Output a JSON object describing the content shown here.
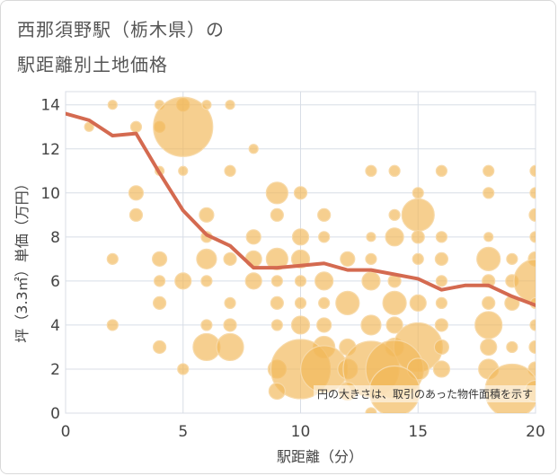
{
  "title_line1": "西那須野駅（栃木県）の",
  "title_line2": "駅距離別土地価格",
  "chart_data": {
    "type": "scatter",
    "xlabel": "駅距離（分）",
    "ylabel": "坪（3.3㎡）単価（万円）",
    "xlim": [
      0,
      20
    ],
    "ylim": [
      0,
      14.6
    ],
    "xticks": [
      0,
      5,
      10,
      15,
      20
    ],
    "yticks": [
      0,
      2,
      4,
      6,
      8,
      10,
      12,
      14
    ],
    "grid": true,
    "note": "円の大きさは、取引のあった物件面積を示す",
    "colors": {
      "bubble_fill": "#f2b85a",
      "bubble_stroke": "#f7d9a8",
      "trend_line": "#d46a50",
      "grid": "#d8dde6",
      "plot_background": "#ffffff"
    },
    "trend_line": {
      "x": [
        0,
        1,
        2,
        3,
        4,
        5,
        6,
        7,
        8,
        9,
        10,
        11,
        12,
        13,
        14,
        15,
        16,
        17,
        18,
        19,
        20
      ],
      "y": [
        13.6,
        13.3,
        12.6,
        12.7,
        10.9,
        9.2,
        8.1,
        7.6,
        6.6,
        6.6,
        6.7,
        6.8,
        6.5,
        6.5,
        6.3,
        6.1,
        5.6,
        5.8,
        5.8,
        5.3,
        4.9
      ]
    },
    "points": [
      {
        "x": 1,
        "y": 13,
        "s": 5
      },
      {
        "x": 2,
        "y": 14,
        "s": 5
      },
      {
        "x": 3,
        "y": 13,
        "s": 6
      },
      {
        "x": 4,
        "y": 13,
        "s": 6
      },
      {
        "x": 4,
        "y": 14,
        "s": 5
      },
      {
        "x": 5,
        "y": 14,
        "s": 7
      },
      {
        "x": 5,
        "y": 13,
        "s": 33
      },
      {
        "x": 6,
        "y": 14,
        "s": 5
      },
      {
        "x": 7,
        "y": 14,
        "s": 5
      },
      {
        "x": 8,
        "y": 12,
        "s": 5
      },
      {
        "x": 4,
        "y": 11,
        "s": 5
      },
      {
        "x": 5,
        "y": 11,
        "s": 5
      },
      {
        "x": 7,
        "y": 11,
        "s": 6
      },
      {
        "x": 13,
        "y": 11,
        "s": 6
      },
      {
        "x": 14,
        "y": 11,
        "s": 6
      },
      {
        "x": 16,
        "y": 11,
        "s": 6
      },
      {
        "x": 18,
        "y": 11,
        "s": 6
      },
      {
        "x": 20,
        "y": 11,
        "s": 6
      },
      {
        "x": 3,
        "y": 10,
        "s": 8
      },
      {
        "x": 9,
        "y": 10,
        "s": 12
      },
      {
        "x": 10,
        "y": 10,
        "s": 7
      },
      {
        "x": 15,
        "y": 10,
        "s": 6
      },
      {
        "x": 18,
        "y": 10,
        "s": 6
      },
      {
        "x": 20,
        "y": 10,
        "s": 6
      },
      {
        "x": 3,
        "y": 9,
        "s": 7
      },
      {
        "x": 6,
        "y": 9,
        "s": 8
      },
      {
        "x": 9,
        "y": 9,
        "s": 7
      },
      {
        "x": 11,
        "y": 9,
        "s": 7
      },
      {
        "x": 14,
        "y": 9,
        "s": 6
      },
      {
        "x": 15,
        "y": 9,
        "s": 18
      },
      {
        "x": 20,
        "y": 9,
        "s": 7
      },
      {
        "x": 6,
        "y": 8,
        "s": 6
      },
      {
        "x": 8,
        "y": 8,
        "s": 8
      },
      {
        "x": 10,
        "y": 8,
        "s": 9
      },
      {
        "x": 11,
        "y": 8,
        "s": 6
      },
      {
        "x": 13,
        "y": 8,
        "s": 5
      },
      {
        "x": 14,
        "y": 8,
        "s": 10
      },
      {
        "x": 15,
        "y": 8,
        "s": 7
      },
      {
        "x": 16,
        "y": 8,
        "s": 6
      },
      {
        "x": 18,
        "y": 8,
        "s": 5
      },
      {
        "x": 20,
        "y": 8,
        "s": 6
      },
      {
        "x": 2,
        "y": 7,
        "s": 6
      },
      {
        "x": 4,
        "y": 7,
        "s": 8
      },
      {
        "x": 6,
        "y": 7,
        "s": 11
      },
      {
        "x": 7,
        "y": 7,
        "s": 7
      },
      {
        "x": 8,
        "y": 7,
        "s": 9
      },
      {
        "x": 9,
        "y": 7,
        "s": 12
      },
      {
        "x": 10,
        "y": 7,
        "s": 10
      },
      {
        "x": 12,
        "y": 7,
        "s": 8
      },
      {
        "x": 13,
        "y": 7,
        "s": 6
      },
      {
        "x": 15,
        "y": 7,
        "s": 6
      },
      {
        "x": 16,
        "y": 7,
        "s": 7
      },
      {
        "x": 18,
        "y": 7,
        "s": 13
      },
      {
        "x": 19,
        "y": 7,
        "s": 6
      },
      {
        "x": 20,
        "y": 7,
        "s": 8
      },
      {
        "x": 4,
        "y": 6,
        "s": 6
      },
      {
        "x": 5,
        "y": 6,
        "s": 9
      },
      {
        "x": 6,
        "y": 6,
        "s": 6
      },
      {
        "x": 8,
        "y": 6,
        "s": 9
      },
      {
        "x": 9,
        "y": 6,
        "s": 6
      },
      {
        "x": 10,
        "y": 6,
        "s": 6
      },
      {
        "x": 11,
        "y": 6,
        "s": 10
      },
      {
        "x": 13,
        "y": 6,
        "s": 10
      },
      {
        "x": 14,
        "y": 6,
        "s": 7
      },
      {
        "x": 16,
        "y": 6,
        "s": 6
      },
      {
        "x": 18,
        "y": 6,
        "s": 7
      },
      {
        "x": 19,
        "y": 6,
        "s": 7
      },
      {
        "x": 20,
        "y": 6,
        "s": 24
      },
      {
        "x": 4,
        "y": 5,
        "s": 7
      },
      {
        "x": 7,
        "y": 5,
        "s": 6
      },
      {
        "x": 9,
        "y": 5,
        "s": 7
      },
      {
        "x": 10,
        "y": 5,
        "s": 6
      },
      {
        "x": 11,
        "y": 5,
        "s": 6
      },
      {
        "x": 12,
        "y": 5,
        "s": 13
      },
      {
        "x": 14,
        "y": 5,
        "s": 13
      },
      {
        "x": 15,
        "y": 5,
        "s": 9
      },
      {
        "x": 16,
        "y": 5,
        "s": 6
      },
      {
        "x": 18,
        "y": 5,
        "s": 7
      },
      {
        "x": 19,
        "y": 5,
        "s": 8
      },
      {
        "x": 20,
        "y": 5,
        "s": 6
      },
      {
        "x": 2,
        "y": 4,
        "s": 6
      },
      {
        "x": 6,
        "y": 4,
        "s": 6
      },
      {
        "x": 7,
        "y": 4,
        "s": 7
      },
      {
        "x": 9,
        "y": 4,
        "s": 6
      },
      {
        "x": 10,
        "y": 4,
        "s": 10
      },
      {
        "x": 11,
        "y": 4,
        "s": 8
      },
      {
        "x": 13,
        "y": 4,
        "s": 11
      },
      {
        "x": 14,
        "y": 4,
        "s": 9
      },
      {
        "x": 16,
        "y": 4,
        "s": 7
      },
      {
        "x": 18,
        "y": 4,
        "s": 15
      },
      {
        "x": 20,
        "y": 4,
        "s": 6
      },
      {
        "x": 4,
        "y": 3,
        "s": 7
      },
      {
        "x": 6,
        "y": 3,
        "s": 15
      },
      {
        "x": 7,
        "y": 3,
        "s": 15
      },
      {
        "x": 11,
        "y": 3,
        "s": 12
      },
      {
        "x": 12,
        "y": 3,
        "s": 9
      },
      {
        "x": 14,
        "y": 3,
        "s": 10
      },
      {
        "x": 15,
        "y": 3,
        "s": 27
      },
      {
        "x": 16,
        "y": 3,
        "s": 8
      },
      {
        "x": 18,
        "y": 3,
        "s": 9
      },
      {
        "x": 19,
        "y": 3,
        "s": 6
      },
      {
        "x": 20,
        "y": 3,
        "s": 7
      },
      {
        "x": 5,
        "y": 2,
        "s": 6
      },
      {
        "x": 9,
        "y": 2,
        "s": 10
      },
      {
        "x": 10,
        "y": 2,
        "s": 33
      },
      {
        "x": 11,
        "y": 2,
        "s": 26
      },
      {
        "x": 12,
        "y": 2,
        "s": 11
      },
      {
        "x": 13,
        "y": 2,
        "s": 31
      },
      {
        "x": 14,
        "y": 2,
        "s": 32
      },
      {
        "x": 15,
        "y": 2,
        "s": 12
      },
      {
        "x": 16,
        "y": 2,
        "s": 9
      },
      {
        "x": 18,
        "y": 2,
        "s": 11
      },
      {
        "x": 20,
        "y": 2,
        "s": 8
      },
      {
        "x": 9,
        "y": 1,
        "s": 9
      },
      {
        "x": 12,
        "y": 1,
        "s": 10
      },
      {
        "x": 14,
        "y": 1,
        "s": 28
      },
      {
        "x": 19,
        "y": 1,
        "s": 30
      },
      {
        "x": 20,
        "y": 1,
        "s": 12
      },
      {
        "x": 13,
        "y": 0,
        "s": 6
      }
    ]
  }
}
